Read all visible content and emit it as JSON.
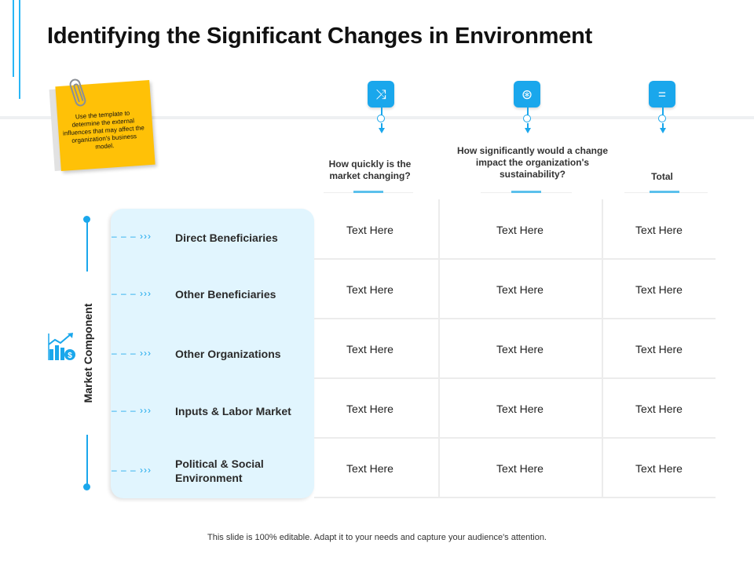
{
  "title": "Identifying the Significant Changes in Environment",
  "sticky_note": {
    "text": "Use the template to determine the external influences that may affect the organization's business model."
  },
  "columns": [
    {
      "header": "How quickly is the market changing?",
      "icon": "shuffle-icon",
      "glyph": "⤨"
    },
    {
      "header": "How significantly would a change impact the organization's sustainability?",
      "icon": "steering-wheel-icon",
      "glyph": "⊛"
    },
    {
      "header": "Total",
      "icon": "equals-icon",
      "glyph": "="
    }
  ],
  "axis_label": "Market Component",
  "axis_icon": "growth-chart-icon",
  "row_connector": "– – – ›››",
  "rows": [
    {
      "label": "Direct Beneficiaries",
      "cells": [
        "Text Here",
        "Text Here",
        "Text Here"
      ]
    },
    {
      "label": "Other Beneficiaries",
      "cells": [
        "Text Here",
        "Text Here",
        "Text Here"
      ]
    },
    {
      "label": "Other Organizations",
      "cells": [
        "Text Here",
        "Text Here",
        "Text Here"
      ]
    },
    {
      "label": "Inputs & Labor Market",
      "cells": [
        "Text Here",
        "Text Here",
        "Text Here"
      ]
    },
    {
      "label": "Political & Social Environment",
      "cells": [
        "Text Here",
        "Text Here",
        "Text Here"
      ]
    }
  ],
  "footer": "This slide is 100% editable. Adapt it to your needs and capture your audience's attention.",
  "colors": {
    "accent": "#1aa7ec",
    "note": "#ffc107",
    "panel": "#e1f5fe"
  }
}
